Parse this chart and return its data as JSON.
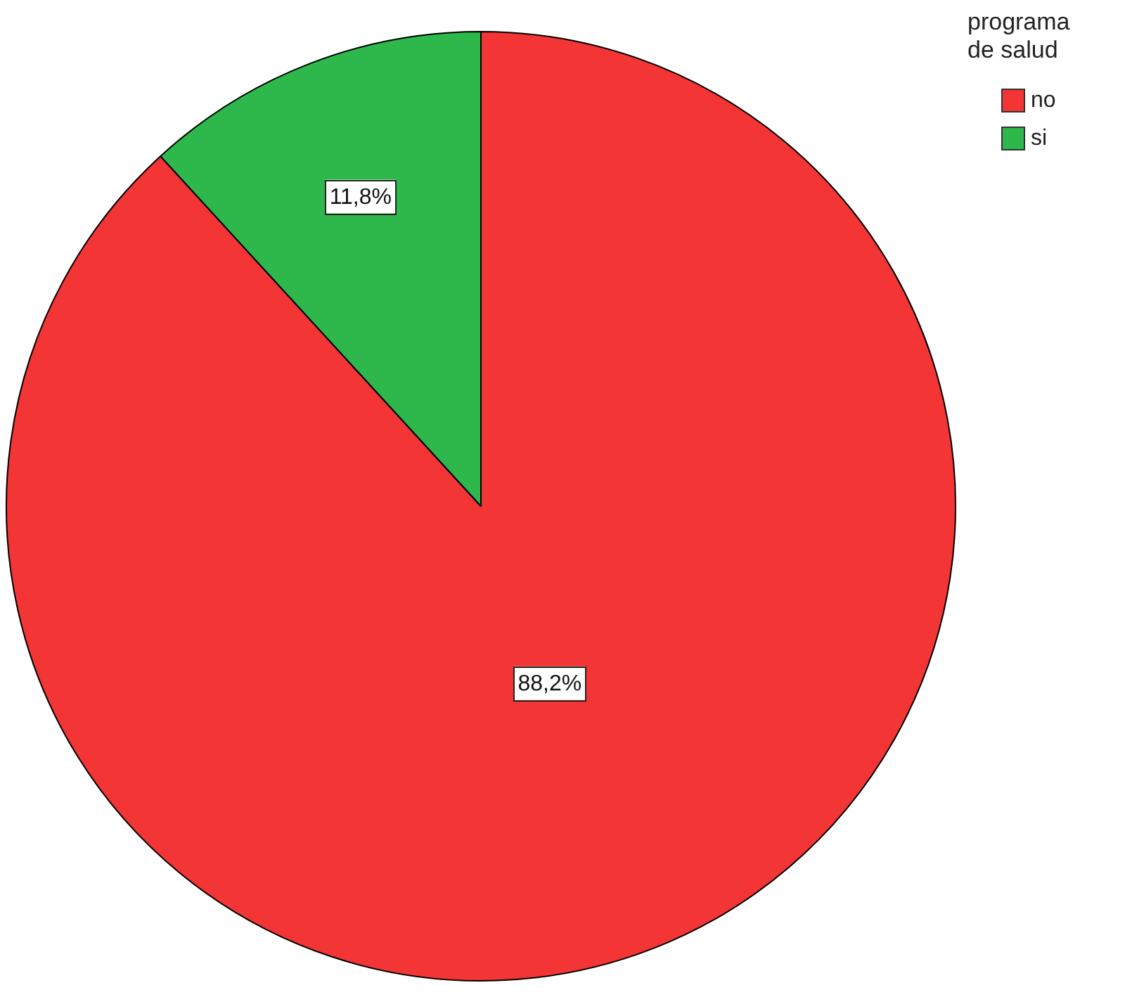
{
  "chart_data": {
    "type": "pie",
    "categories": [
      "no",
      "si"
    ],
    "values": [
      88.2,
      11.8
    ],
    "colors": [
      "#f33535",
      "#2eb84b"
    ],
    "value_labels": [
      "88,2%",
      "11,8%"
    ],
    "legend_title": "programa de salud",
    "legend": "top right"
  }
}
